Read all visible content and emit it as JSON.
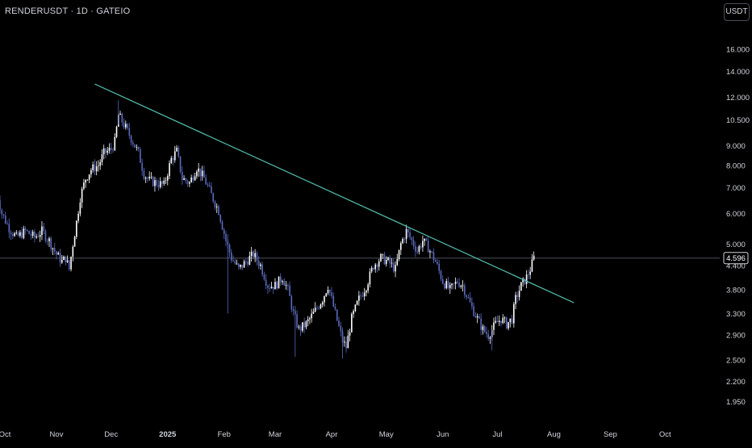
{
  "header": {
    "symbol": "RENDERUSDT · 1D · GATEIO",
    "currency": "USDT"
  },
  "colors": {
    "background": "#000000",
    "candle_up": "#ffffff",
    "candle_down": "#5b6bbf",
    "trendline": "#4fb7a6",
    "axis_text": "#d1d4dc",
    "price_line": "#4a4e58"
  },
  "chart_data": {
    "type": "candlestick",
    "y_scale": "log",
    "ylim": [
      1.75,
      19.5
    ],
    "y_ticks": [
      "16.000",
      "14.000",
      "12.000",
      "10.500",
      "9.000",
      "8.000",
      "7.000",
      "6.000",
      "5.000",
      "4.400",
      "3.800",
      "3.300",
      "2.900",
      "2.500",
      "2.200",
      "1.950"
    ],
    "x_ticks": [
      "Oct",
      "Nov",
      "Dec",
      "2025",
      "Feb",
      "Mar",
      "Apr",
      "May",
      "Jun",
      "Jul",
      "Aug",
      "Sep",
      "Oct"
    ],
    "x_range": [
      "2024-10-01",
      "2025-10-31"
    ],
    "last_price": "4.596",
    "trendline": {
      "from": {
        "date": "2024-11-22",
        "price": 13.0
      },
      "to": {
        "date": "2025-08-12",
        "price": 3.52
      }
    },
    "anchors": [
      [
        "2024-09-29",
        6.9
      ],
      [
        "2024-10-02",
        6.0
      ],
      [
        "2024-10-06",
        5.5
      ],
      [
        "2024-10-10",
        5.2
      ],
      [
        "2024-10-15",
        5.4
      ],
      [
        "2024-10-20",
        5.2
      ],
      [
        "2024-10-24",
        5.4
      ],
      [
        "2024-10-28",
        5.1
      ],
      [
        "2024-11-01",
        4.7
      ],
      [
        "2024-11-04",
        4.5
      ],
      [
        "2024-11-06",
        4.6
      ],
      [
        "2024-11-08",
        4.3
      ],
      [
        "2024-11-10",
        5.0
      ],
      [
        "2024-11-12",
        5.7
      ],
      [
        "2024-11-14",
        6.6
      ],
      [
        "2024-11-17",
        7.4
      ],
      [
        "2024-11-20",
        7.8
      ],
      [
        "2024-11-24",
        8.0
      ],
      [
        "2024-11-27",
        8.6
      ],
      [
        "2024-12-01",
        8.8
      ],
      [
        "2024-12-03",
        9.2
      ],
      [
        "2024-12-05",
        10.8
      ],
      [
        "2024-12-07",
        10.4
      ],
      [
        "2024-12-10",
        9.8
      ],
      [
        "2024-12-13",
        9.2
      ],
      [
        "2024-12-16",
        8.6
      ],
      [
        "2024-12-19",
        7.6
      ],
      [
        "2024-12-22",
        7.3
      ],
      [
        "2024-12-26",
        7.2
      ],
      [
        "2024-12-30",
        7.1
      ],
      [
        "2025-01-03",
        8.3
      ],
      [
        "2025-01-06",
        8.7
      ],
      [
        "2025-01-09",
        7.4
      ],
      [
        "2025-01-13",
        7.2
      ],
      [
        "2025-01-17",
        7.9
      ],
      [
        "2025-01-21",
        7.4
      ],
      [
        "2025-01-25",
        6.7
      ],
      [
        "2025-01-29",
        6.1
      ],
      [
        "2025-02-02",
        5.1
      ],
      [
        "2025-02-05",
        4.6
      ],
      [
        "2025-02-09",
        4.3
      ],
      [
        "2025-02-13",
        4.5
      ],
      [
        "2025-02-17",
        4.7
      ],
      [
        "2025-02-21",
        4.4
      ],
      [
        "2025-02-25",
        3.9
      ],
      [
        "2025-03-01",
        3.9
      ],
      [
        "2025-03-05",
        4.1
      ],
      [
        "2025-03-08",
        3.8
      ],
      [
        "2025-03-11",
        3.3
      ],
      [
        "2025-03-14",
        3.0
      ],
      [
        "2025-03-18",
        3.1
      ],
      [
        "2025-03-22",
        3.3
      ],
      [
        "2025-03-27",
        3.6
      ],
      [
        "2025-03-30",
        3.9
      ],
      [
        "2025-04-03",
        3.3
      ],
      [
        "2025-04-07",
        2.8
      ],
      [
        "2025-04-09",
        2.7
      ],
      [
        "2025-04-12",
        3.2
      ],
      [
        "2025-04-16",
        3.6
      ],
      [
        "2025-04-20",
        3.9
      ],
      [
        "2025-04-24",
        4.4
      ],
      [
        "2025-04-28",
        4.6
      ],
      [
        "2025-05-02",
        4.5
      ],
      [
        "2025-05-06",
        4.3
      ],
      [
        "2025-05-09",
        5.0
      ],
      [
        "2025-05-12",
        5.4
      ],
      [
        "2025-05-15",
        5.1
      ],
      [
        "2025-05-18",
        4.8
      ],
      [
        "2025-05-21",
        5.1
      ],
      [
        "2025-05-24",
        4.9
      ],
      [
        "2025-05-28",
        4.5
      ],
      [
        "2025-06-01",
        4.0
      ],
      [
        "2025-06-05",
        3.8
      ],
      [
        "2025-06-09",
        4.0
      ],
      [
        "2025-06-12",
        3.9
      ],
      [
        "2025-06-16",
        3.5
      ],
      [
        "2025-06-20",
        3.2
      ],
      [
        "2025-06-23",
        3.0
      ],
      [
        "2025-06-26",
        2.9
      ],
      [
        "2025-06-30",
        3.1
      ],
      [
        "2025-07-03",
        3.2
      ],
      [
        "2025-07-06",
        3.1
      ],
      [
        "2025-07-09",
        3.2
      ],
      [
        "2025-07-11",
        3.6
      ],
      [
        "2025-07-14",
        3.9
      ],
      [
        "2025-07-17",
        4.1
      ],
      [
        "2025-07-19",
        4.3
      ],
      [
        "2025-07-21",
        4.596
      ]
    ]
  }
}
